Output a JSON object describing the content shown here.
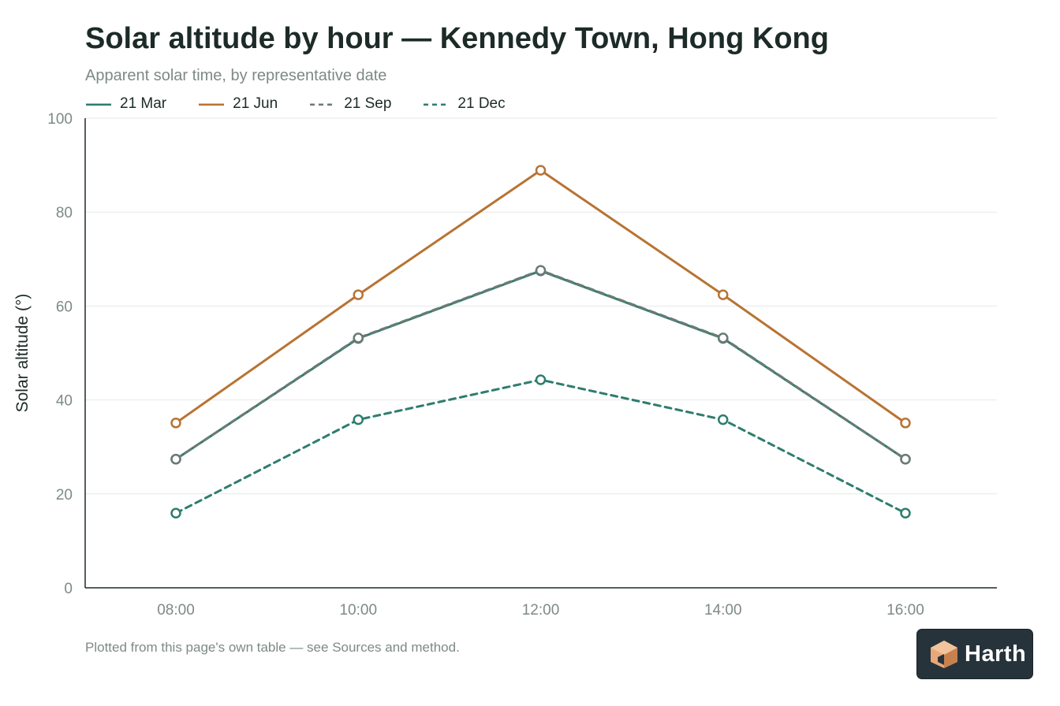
{
  "title": "Solar altitude by hour — Kennedy Town, Hong Kong",
  "subtitle": "Apparent solar time, by representative date",
  "footnote": "Plotted from this page's own table — see Sources and method.",
  "brand": {
    "name": "Harth",
    "icon": "house-cube-icon",
    "badge_color": "#27333b",
    "icon_color": "#e8a878"
  },
  "chart_data": {
    "type": "line",
    "categories": [
      "08:00",
      "10:00",
      "12:00",
      "14:00",
      "16:00"
    ],
    "series": [
      {
        "name": "21 Mar",
        "values": [
          27.4,
          53.1,
          67.5,
          53.1,
          27.4
        ],
        "color": "#2e7d6e",
        "dash": false
      },
      {
        "name": "21 Jun",
        "values": [
          35.1,
          62.4,
          88.9,
          62.4,
          35.1
        ],
        "color": "#b87333",
        "dash": false
      },
      {
        "name": "21 Sep",
        "values": [
          27.4,
          53.2,
          67.6,
          53.2,
          27.4
        ],
        "color": "#6b7a76",
        "dash": true
      },
      {
        "name": "21 Dec",
        "values": [
          15.9,
          35.8,
          44.3,
          35.8,
          15.9
        ],
        "color": "#2e7d6e",
        "dash": true
      }
    ],
    "xlabel": "",
    "ylabel": "Solar altitude (°)",
    "ylim": [
      0,
      100
    ],
    "yticks": [
      "0",
      "20",
      "40",
      "60",
      "80",
      "100"
    ],
    "grid": true,
    "legend_position": "top-left"
  }
}
